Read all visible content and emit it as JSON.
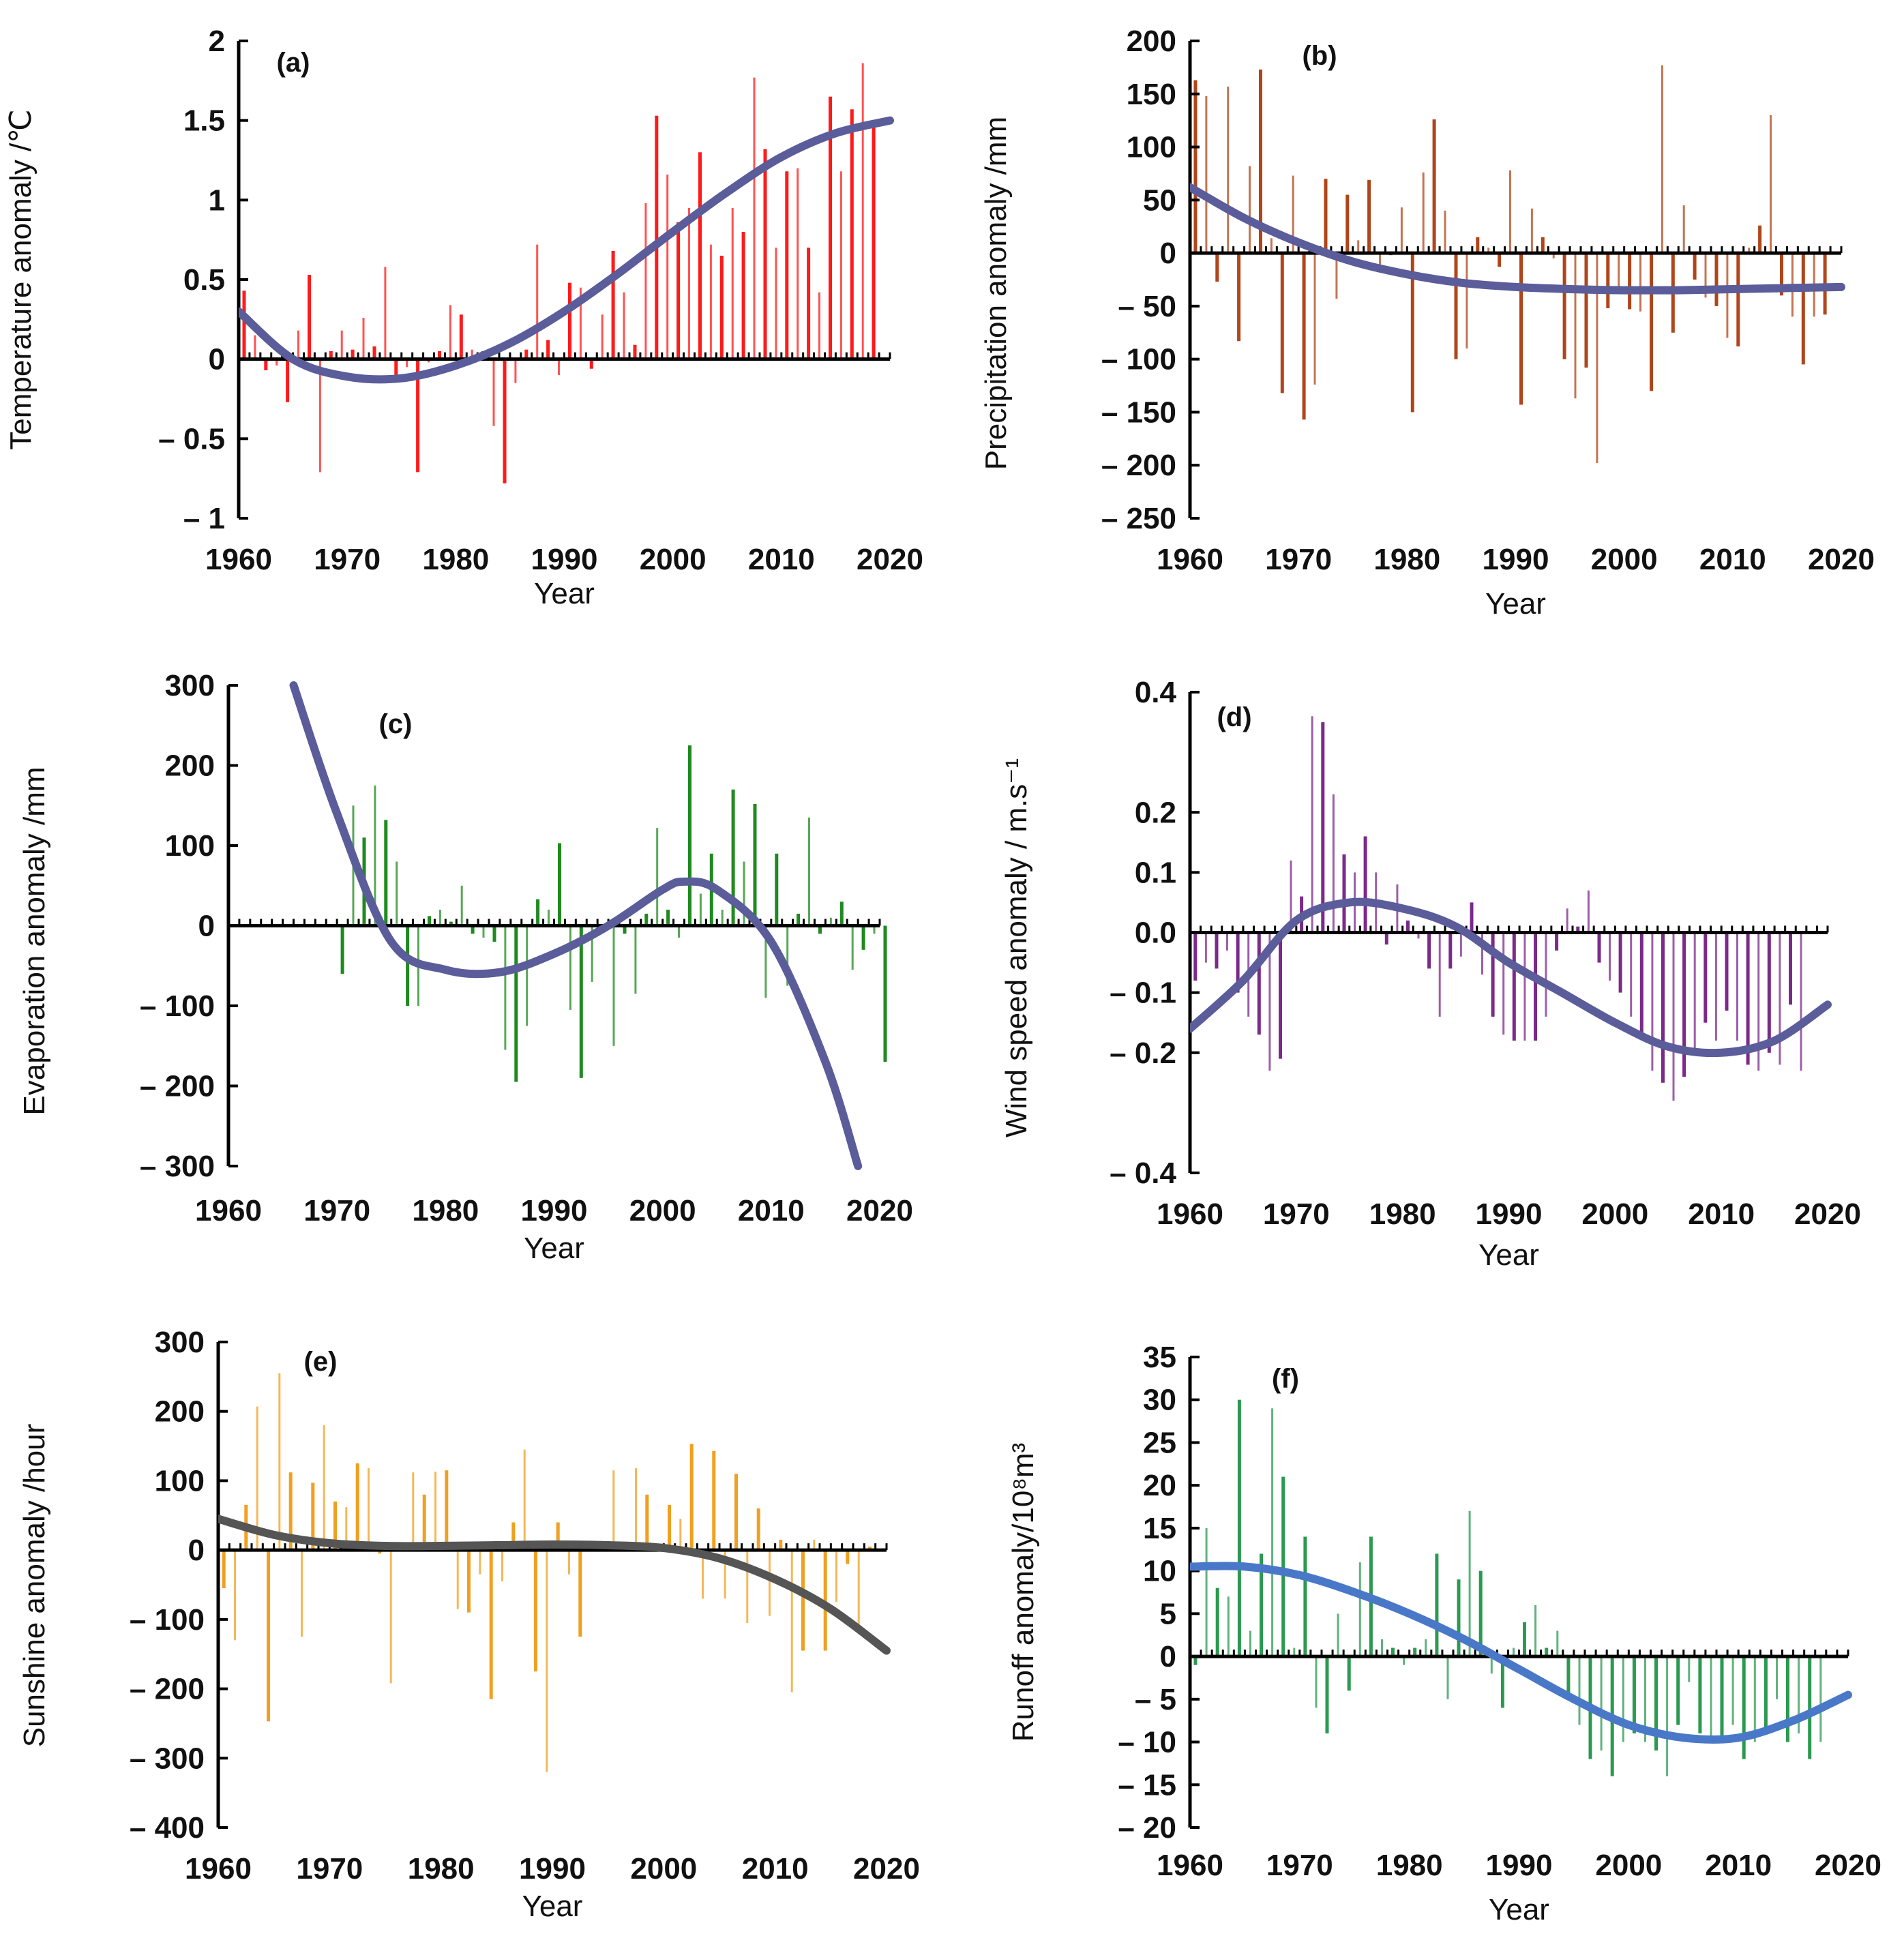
{
  "figure": {
    "title": ""
  },
  "chart_data": [
    {
      "id": "a",
      "type": "bar",
      "label": "(a)",
      "title": "",
      "xlabel": "Year",
      "ylabel": "Temperature anomaly /℃",
      "xlim": [
        1960,
        2020
      ],
      "ylim": [
        -1,
        2
      ],
      "yticks": [
        {
          "v": 2,
          "t": "2"
        },
        {
          "v": 1.5,
          "t": "1.5"
        },
        {
          "v": 1,
          "t": "1"
        },
        {
          "v": 0.5,
          "t": "0.5"
        },
        {
          "v": 0,
          "t": "0"
        },
        {
          "v": -0.5,
          "t": "– 0.5"
        },
        {
          "v": -1,
          "t": "– 1"
        }
      ],
      "xticks": [
        {
          "v": 1960,
          "t": "1960"
        },
        {
          "v": 1970,
          "t": "1970"
        },
        {
          "v": 1980,
          "t": "1980"
        },
        {
          "v": 1990,
          "t": "1990"
        },
        {
          "v": 2000,
          "t": "2000"
        },
        {
          "v": 2010,
          "t": "2010"
        },
        {
          "v": 2020,
          "t": "2020"
        }
      ],
      "bar_color": "#ff1a1a",
      "trend_color": "#5b5c9a",
      "years_start": 1960,
      "values": [
        0.43,
        0.15,
        -0.07,
        -0.04,
        -0.27,
        0.18,
        0.53,
        -0.71,
        0.05,
        0.18,
        0.06,
        0.26,
        0.08,
        0.58,
        -0.1,
        -0.05,
        -0.71,
        -0.02,
        0.05,
        0.34,
        0.28,
        0.06,
        0.05,
        -0.42,
        -0.78,
        -0.15,
        0.06,
        0.72,
        0.12,
        -0.1,
        0.48,
        0.45,
        -0.06,
        0.28,
        0.68,
        0.42,
        0.09,
        0.98,
        1.53,
        1.16,
        0.86,
        0.95,
        1.3,
        0.72,
        0.65,
        0.95,
        0.8,
        1.77,
        1.32,
        0.7,
        1.18,
        1.2,
        0.7,
        0.42,
        1.65,
        1.18,
        1.57,
        1.86,
        1.5
      ],
      "trend": {
        "x": [
          1960,
          1965,
          1970,
          1975,
          1980,
          1985,
          1990,
          1995,
          2000,
          2005,
          2010,
          2015,
          2020
        ],
        "y": [
          0.3,
          0.0,
          -0.11,
          -0.12,
          -0.04,
          0.1,
          0.3,
          0.54,
          0.8,
          1.05,
          1.27,
          1.42,
          1.5
        ]
      }
    },
    {
      "id": "b",
      "type": "bar",
      "label": "(b)",
      "title": "",
      "xlabel": "Year",
      "ylabel": "Precipitation anomaly /mm",
      "xlim": [
        1960,
        2020
      ],
      "ylim": [
        -250,
        200
      ],
      "yticks": [
        {
          "v": 200,
          "t": "200"
        },
        {
          "v": 150,
          "t": "150"
        },
        {
          "v": 100,
          "t": "100"
        },
        {
          "v": 50,
          "t": "50"
        },
        {
          "v": 0,
          "t": "0"
        },
        {
          "v": -50,
          "t": "– 50"
        },
        {
          "v": -100,
          "t": "– 100"
        },
        {
          "v": -150,
          "t": "– 150"
        },
        {
          "v": -200,
          "t": "– 200"
        },
        {
          "v": -250,
          "t": "– 250"
        }
      ],
      "xticks": [
        {
          "v": 1960,
          "t": "1960"
        },
        {
          "v": 1970,
          "t": "1970"
        },
        {
          "v": 1980,
          "t": "1980"
        },
        {
          "v": 1990,
          "t": "1990"
        },
        {
          "v": 2000,
          "t": "2000"
        },
        {
          "v": 2010,
          "t": "2010"
        },
        {
          "v": 2020,
          "t": "2020"
        }
      ],
      "bar_color": "#b0451a",
      "trend_color": "#5b5c9a",
      "years_start": 1960,
      "values": [
        163,
        148,
        -27,
        157,
        -83,
        82,
        173,
        14,
        -132,
        73,
        -157,
        -124,
        70,
        -43,
        55,
        12,
        69,
        -18,
        -2,
        43,
        -150,
        76,
        126,
        40,
        -100,
        -90,
        15,
        5,
        -13,
        78,
        -143,
        42,
        15,
        -5,
        -100,
        -137,
        -108,
        -198,
        -52,
        -38,
        -53,
        -55,
        -130,
        177,
        -75,
        45,
        -25,
        -42,
        -50,
        -80,
        -88,
        5,
        26,
        130,
        -40,
        -60,
        -105,
        -60,
        -58
      ],
      "trend": {
        "x": [
          1960,
          1965,
          1970,
          1975,
          1980,
          1985,
          1990,
          1995,
          2000,
          2005,
          2010,
          2015,
          2020
        ],
        "y": [
          62,
          33,
          10,
          -8,
          -20,
          -28,
          -32,
          -34,
          -35,
          -35,
          -34,
          -33,
          -32
        ]
      }
    },
    {
      "id": "c",
      "type": "bar",
      "label": "(c)",
      "title": "",
      "xlabel": "Year",
      "ylabel": "Evaporation anomaly /mm",
      "xlim": [
        1960,
        2020
      ],
      "ylim": [
        -300,
        300
      ],
      "yticks": [
        {
          "v": 300,
          "t": "300"
        },
        {
          "v": 200,
          "t": "200"
        },
        {
          "v": 100,
          "t": "100"
        },
        {
          "v": 0,
          "t": "0"
        },
        {
          "v": -100,
          "t": "– 100"
        },
        {
          "v": -200,
          "t": "– 200"
        },
        {
          "v": -300,
          "t": "– 300"
        }
      ],
      "xticks": [
        {
          "v": 1960,
          "t": "1960"
        },
        {
          "v": 1970,
          "t": "1970"
        },
        {
          "v": 1980,
          "t": "1980"
        },
        {
          "v": 1990,
          "t": "1990"
        },
        {
          "v": 2000,
          "t": "2000"
        },
        {
          "v": 2010,
          "t": "2010"
        },
        {
          "v": 2020,
          "t": "2020"
        }
      ],
      "bar_color": "#1f8a1f",
      "trend_color": "#5b5c9a",
      "years_start": 1970,
      "values": [
        -60,
        150,
        110,
        175,
        132,
        80,
        -100,
        -100,
        12,
        20,
        5,
        50,
        -10,
        -15,
        -20,
        -155,
        -195,
        -125,
        33,
        20,
        103,
        -105,
        -190,
        -70,
        -5,
        -150,
        -10,
        -85,
        15,
        122,
        20,
        -15,
        225,
        40,
        90,
        20,
        170,
        80,
        152,
        -90,
        90,
        -75,
        15,
        135,
        -10,
        10,
        30,
        -55,
        -30,
        -10,
        -170
      ],
      "trend": {
        "x": [
          1966,
          1970,
          1975,
          1980,
          1985,
          1990,
          1995,
          2000,
          2002,
          2005,
          2010,
          2015,
          2018
        ],
        "y": [
          300,
          140,
          -20,
          -55,
          -58,
          -35,
          0,
          45,
          55,
          45,
          -20,
          -170,
          -300
        ]
      }
    },
    {
      "id": "d",
      "type": "bar",
      "label": "(d)",
      "title": "",
      "xlabel": "Year",
      "ylabel": "Wind speed anomaly / m.s⁻¹",
      "xlim": [
        1960,
        2020
      ],
      "ylim": [
        -0.4,
        0.4
      ],
      "yticks": [
        {
          "v": 0.4,
          "t": "0.4"
        },
        {
          "v": 0.2,
          "t": "0.2"
        },
        {
          "v": 0.1,
          "t": "0.1"
        },
        {
          "v": 0,
          "t": "0.0"
        },
        {
          "v": -0.1,
          "t": "– 0.1"
        },
        {
          "v": -0.2,
          "t": "– 0.2"
        },
        {
          "v": -0.4,
          "t": "– 0.4"
        }
      ],
      "xticks": [
        {
          "v": 1960,
          "t": "1960"
        },
        {
          "v": 1970,
          "t": "1970"
        },
        {
          "v": 1980,
          "t": "1980"
        },
        {
          "v": 1990,
          "t": "1990"
        },
        {
          "v": 2000,
          "t": "2000"
        },
        {
          "v": 2010,
          "t": "2010"
        },
        {
          "v": 2020,
          "t": "2020"
        }
      ],
      "bar_color": "#7b2a8a",
      "trend_color": "#5b5c9a",
      "years_start": 1960,
      "values": [
        -0.08,
        -0.05,
        -0.06,
        -0.03,
        -0.1,
        -0.14,
        -0.17,
        -0.23,
        -0.21,
        0.12,
        0.06,
        0.36,
        0.35,
        0.23,
        0.13,
        0.1,
        0.16,
        0.1,
        -0.02,
        0.08,
        0.02,
        -0.01,
        -0.06,
        -0.14,
        -0.06,
        -0.04,
        0.05,
        -0.07,
        -0.14,
        -0.17,
        -0.18,
        -0.18,
        -0.18,
        -0.14,
        -0.03,
        0.04,
        0.01,
        0.07,
        -0.05,
        -0.08,
        -0.1,
        -0.14,
        -0.17,
        -0.23,
        -0.25,
        -0.28,
        -0.24,
        -0.2,
        -0.15,
        -0.18,
        -0.13,
        -0.18,
        -0.22,
        -0.23,
        -0.2,
        -0.22,
        -0.12,
        -0.23
      ],
      "trend": {
        "x": [
          1960,
          1965,
          1970,
          1975,
          1980,
          1985,
          1990,
          1995,
          2000,
          2005,
          2010,
          2015,
          2020
        ],
        "y": [
          -0.16,
          -0.08,
          0.02,
          0.05,
          0.04,
          0.01,
          -0.05,
          -0.1,
          -0.15,
          -0.19,
          -0.2,
          -0.18,
          -0.12
        ]
      }
    },
    {
      "id": "e",
      "type": "bar",
      "label": "(e)",
      "title": "",
      "xlabel": "Year",
      "ylabel": "Sunshine anomaly /hour",
      "xlim": [
        1960,
        2020
      ],
      "ylim": [
        -400,
        300
      ],
      "yticks": [
        {
          "v": 300,
          "t": "300"
        },
        {
          "v": 200,
          "t": "200"
        },
        {
          "v": 100,
          "t": "100"
        },
        {
          "v": 0,
          "t": "0"
        },
        {
          "v": -100,
          "t": "– 100"
        },
        {
          "v": -200,
          "t": "– 200"
        },
        {
          "v": -300,
          "t": "– 300"
        },
        {
          "v": -400,
          "t": "– 400"
        }
      ],
      "xticks": [
        {
          "v": 1960,
          "t": "1960"
        },
        {
          "v": 1970,
          "t": "1970"
        },
        {
          "v": 1980,
          "t": "1980"
        },
        {
          "v": 1990,
          "t": "1990"
        },
        {
          "v": 2000,
          "t": "2000"
        },
        {
          "v": 2010,
          "t": "2010"
        },
        {
          "v": 2020,
          "t": "2020"
        }
      ],
      "bar_color": "#f0a020",
      "trend_color": "#555555",
      "years_start": 1960,
      "values": [
        -55,
        -130,
        65,
        207,
        -247,
        255,
        112,
        -125,
        97,
        180,
        70,
        62,
        125,
        118,
        -5,
        -192,
        10,
        112,
        80,
        113,
        115,
        -85,
        -90,
        -35,
        -215,
        -45,
        40,
        145,
        -175,
        -320,
        40,
        -35,
        -125,
        10,
        5,
        115,
        10,
        118,
        80,
        5,
        65,
        45,
        153,
        -70,
        143,
        -70,
        110,
        -105,
        60,
        -95,
        15,
        -205,
        -145,
        15,
        -145,
        -75,
        -20,
        -120,
        5
      ],
      "trend": {
        "x": [
          1960,
          1965,
          1970,
          1975,
          1980,
          1985,
          1990,
          1995,
          2000,
          2005,
          2010,
          2015,
          2020
        ],
        "y": [
          45,
          22,
          10,
          6,
          6,
          7,
          8,
          7,
          3,
          -12,
          -42,
          -85,
          -145
        ]
      }
    },
    {
      "id": "f",
      "type": "bar",
      "label": "(f)",
      "title": "",
      "xlabel": "Year",
      "ylabel": "Runoff anomaly/10⁸m³",
      "xlim": [
        1960,
        2020
      ],
      "ylim": [
        -20,
        35
      ],
      "yticks": [
        {
          "v": 35,
          "t": "35"
        },
        {
          "v": 30,
          "t": "30"
        },
        {
          "v": 25,
          "t": "25"
        },
        {
          "v": 20,
          "t": "20"
        },
        {
          "v": 15,
          "t": "15"
        },
        {
          "v": 10,
          "t": "10"
        },
        {
          "v": 5,
          "t": "5"
        },
        {
          "v": 0,
          "t": "0"
        },
        {
          "v": -5,
          "t": "– 5"
        },
        {
          "v": -10,
          "t": "– 10"
        },
        {
          "v": -15,
          "t": "– 15"
        },
        {
          "v": -20,
          "t": "– 20"
        }
      ],
      "xticks": [
        {
          "v": 1960,
          "t": "1960"
        },
        {
          "v": 1970,
          "t": "1970"
        },
        {
          "v": 1980,
          "t": "1980"
        },
        {
          "v": 1990,
          "t": "1990"
        },
        {
          "v": 2000,
          "t": "2000"
        },
        {
          "v": 2010,
          "t": "2010"
        },
        {
          "v": 2020,
          "t": "2020"
        }
      ],
      "bar_color": "#2a9a50",
      "trend_color": "#4a78c8",
      "years_start": 1960,
      "values": [
        -1,
        15,
        8,
        7,
        30,
        3,
        12,
        29,
        21,
        1,
        14,
        -6,
        -9,
        5,
        -4,
        11,
        14,
        2,
        1,
        -1,
        1,
        2,
        12,
        -5,
        9,
        17,
        10,
        -2,
        -6,
        1,
        4,
        6,
        1,
        3,
        -5,
        -8,
        -12,
        -11,
        -14,
        -10,
        -9,
        -10,
        -11,
        -14,
        -8,
        -3,
        -9,
        -10,
        -10,
        -8,
        -12,
        -10,
        -9,
        -5,
        -10,
        -9,
        -12,
        -10,
        0
      ],
      "trend": {
        "x": [
          1960,
          1965,
          1970,
          1975,
          1980,
          1985,
          1990,
          1995,
          2000,
          2005,
          2010,
          2015,
          2020
        ],
        "y": [
          10.5,
          10.5,
          9.5,
          7.5,
          5,
          2,
          -1.5,
          -5,
          -8,
          -9.5,
          -9.5,
          -7.5,
          -4.5
        ]
      }
    }
  ]
}
